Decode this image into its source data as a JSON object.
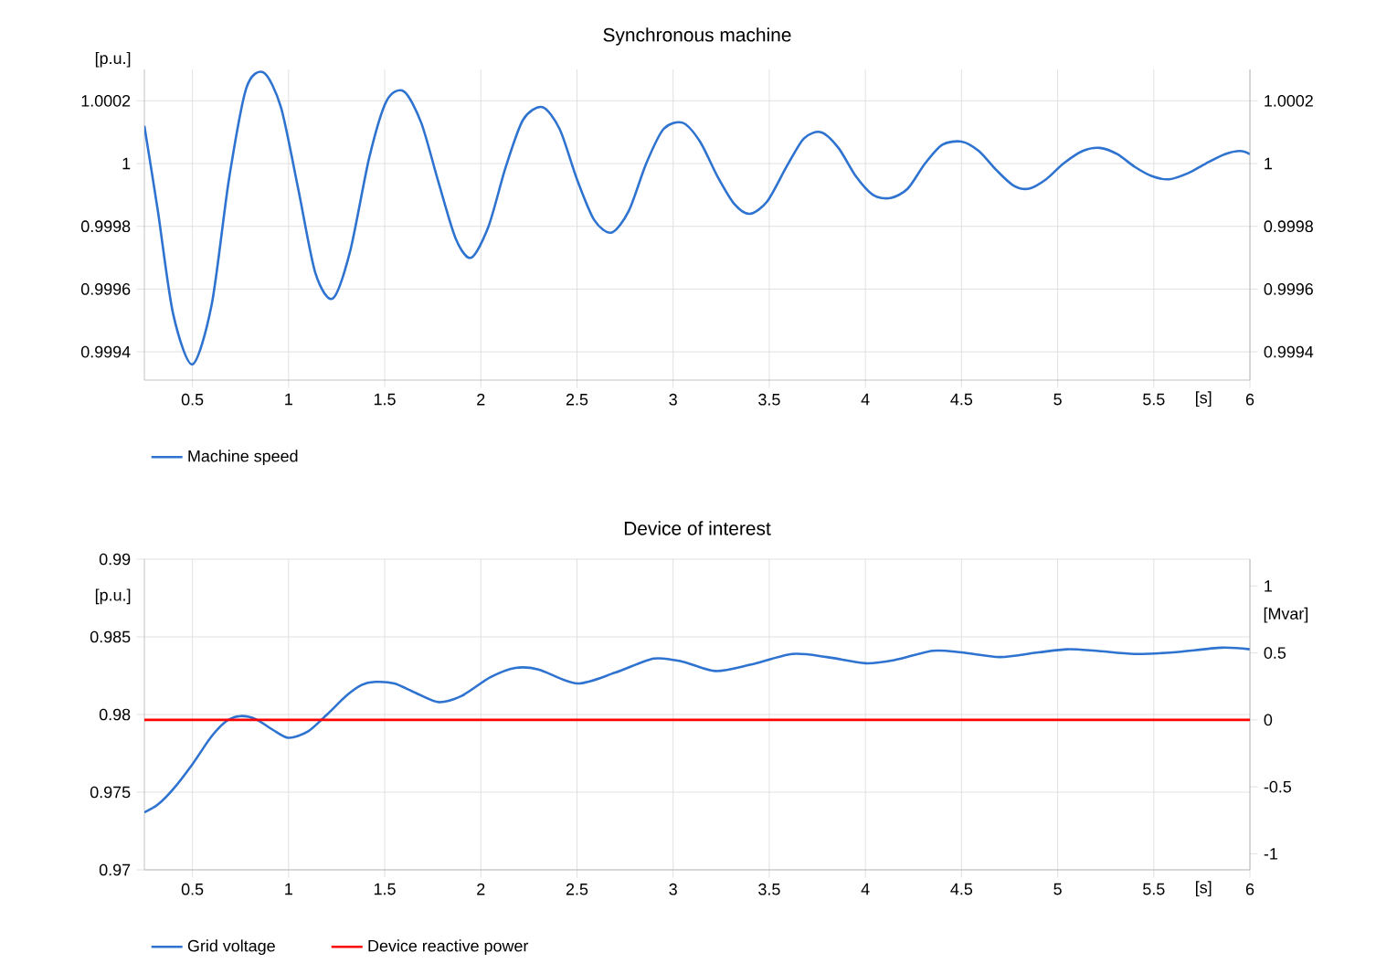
{
  "chart_data": [
    {
      "type": "line",
      "title": "Synchronous machine",
      "xlabel": "[s]",
      "ylabel": "[p.u.]",
      "x": [
        0.25,
        0.32,
        0.4,
        0.5,
        0.6,
        0.69,
        0.78,
        0.87,
        0.96,
        1.05,
        1.14,
        1.23,
        1.32,
        1.42,
        1.51,
        1.6,
        1.69,
        1.78,
        1.87,
        1.95,
        2.04,
        2.13,
        2.22,
        2.32,
        2.41,
        2.5,
        2.59,
        2.68,
        2.77,
        2.86,
        2.95,
        3.05,
        3.14,
        3.23,
        3.32,
        3.4,
        3.49,
        3.59,
        3.68,
        3.77,
        3.86,
        3.95,
        4.04,
        4.13,
        4.22,
        4.31,
        4.4,
        4.5,
        4.59,
        4.68,
        4.77,
        4.85,
        4.94,
        5.03,
        5.13,
        5.22,
        5.31,
        5.4,
        5.49,
        5.58,
        5.68,
        5.77,
        5.87,
        5.95,
        6.0
      ],
      "series": [
        {
          "name": "Machine speed",
          "color": "#2e73d0",
          "values": [
            1.00012,
            0.99985,
            0.99952,
            0.99936,
            0.99955,
            0.99995,
            1.00024,
            1.00029,
            1.00018,
            0.99992,
            0.99965,
            0.99957,
            0.99972,
            1.00002,
            1.0002,
            1.00023,
            1.00013,
            0.99994,
            0.99976,
            0.9997,
            0.9998,
            0.99999,
            1.00014,
            1.00018,
            1.00011,
            0.99995,
            0.99982,
            0.99978,
            0.99985,
            1.0,
            1.00011,
            1.00013,
            1.00007,
            0.99996,
            0.99987,
            0.99984,
            0.99988,
            0.99999,
            1.00008,
            1.0001,
            1.00005,
            0.99996,
            0.9999,
            0.99989,
            0.99992,
            1.0,
            1.00006,
            1.00007,
            1.00004,
            0.99998,
            0.99993,
            0.99992,
            0.99995,
            1.0,
            1.00004,
            1.00005,
            1.00003,
            0.99999,
            0.99996,
            0.99995,
            0.99997,
            1.0,
            1.00003,
            1.00004,
            1.00003
          ]
        }
      ],
      "xlim": [
        0.25,
        6
      ],
      "ylim": [
        0.99931,
        1.0003
      ],
      "y2lim": [
        0.99931,
        1.0003
      ],
      "xticks": [
        0.5,
        1,
        1.5,
        2,
        2.5,
        3,
        3.5,
        4,
        4.5,
        5,
        5.5,
        6
      ],
      "yticks": [
        0.9994,
        0.9996,
        0.9998,
        1,
        1.0002
      ],
      "y2ticks": [
        0.9994,
        0.9996,
        0.9998,
        1,
        1.0002
      ],
      "grid": true,
      "legend": "bottom left"
    },
    {
      "type": "line",
      "title": "Device of interest",
      "xlabel": "[s]",
      "ylabel": "[p.u.]",
      "y2label": "[Mvar]",
      "x": [
        0.25,
        0.32,
        0.4,
        0.5,
        0.6,
        0.68,
        0.75,
        0.83,
        0.92,
        1.0,
        1.1,
        1.2,
        1.3,
        1.38,
        1.45,
        1.55,
        1.66,
        1.78,
        1.9,
        2.05,
        2.18,
        2.3,
        2.5,
        2.7,
        2.9,
        3.05,
        3.22,
        3.4,
        3.62,
        3.8,
        4.0,
        4.15,
        4.35,
        4.5,
        4.7,
        4.9,
        5.05,
        5.2,
        5.4,
        5.6,
        5.85,
        6.0
      ],
      "series": [
        {
          "name": "Grid voltage",
          "color": "#2e73d0",
          "values": [
            0.9737,
            0.9742,
            0.9752,
            0.9768,
            0.9786,
            0.9796,
            0.9799,
            0.9797,
            0.979,
            0.9785,
            0.9789,
            0.98,
            0.9812,
            0.9819,
            0.9821,
            0.982,
            0.9814,
            0.9808,
            0.9812,
            0.9824,
            0.983,
            0.9829,
            0.982,
            0.9827,
            0.9836,
            0.9834,
            0.9828,
            0.9832,
            0.9839,
            0.9837,
            0.9833,
            0.9835,
            0.9841,
            0.984,
            0.9837,
            0.984,
            0.9842,
            0.9841,
            0.9839,
            0.984,
            0.9843,
            0.9842
          ]
        },
        {
          "name": "Device reactive power",
          "color": "#ff0000",
          "axis": "y2",
          "x": [
            0.25,
            6
          ],
          "values": [
            0,
            0
          ]
        }
      ],
      "xlim": [
        0.25,
        6
      ],
      "ylim": [
        0.97,
        0.99
      ],
      "y2lim": [
        -1.12,
        1.2
      ],
      "xticks": [
        0.5,
        1,
        1.5,
        2,
        2.5,
        3,
        3.5,
        4,
        4.5,
        5,
        5.5,
        6
      ],
      "yticks": [
        0.97,
        0.975,
        0.98,
        0.985,
        0.99
      ],
      "y2ticks": [
        -1,
        -0.5,
        0,
        0.5,
        1
      ],
      "grid": true,
      "legend": "bottom left"
    }
  ]
}
